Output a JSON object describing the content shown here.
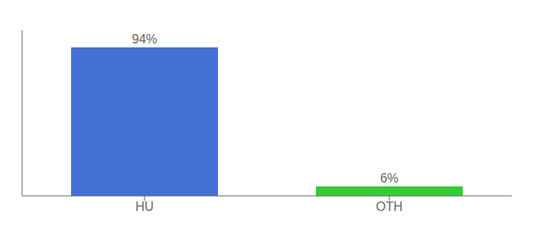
{
  "chart_data": {
    "type": "bar",
    "categories": [
      "HU",
      "OTH"
    ],
    "values": [
      94,
      6
    ],
    "colors": [
      "#4472d4",
      "#33cc33"
    ],
    "value_labels": [
      "94%",
      "6%"
    ],
    "data_labels": true,
    "ylim": [
      0,
      105
    ],
    "tick_labels": "x",
    "grid": false
  }
}
